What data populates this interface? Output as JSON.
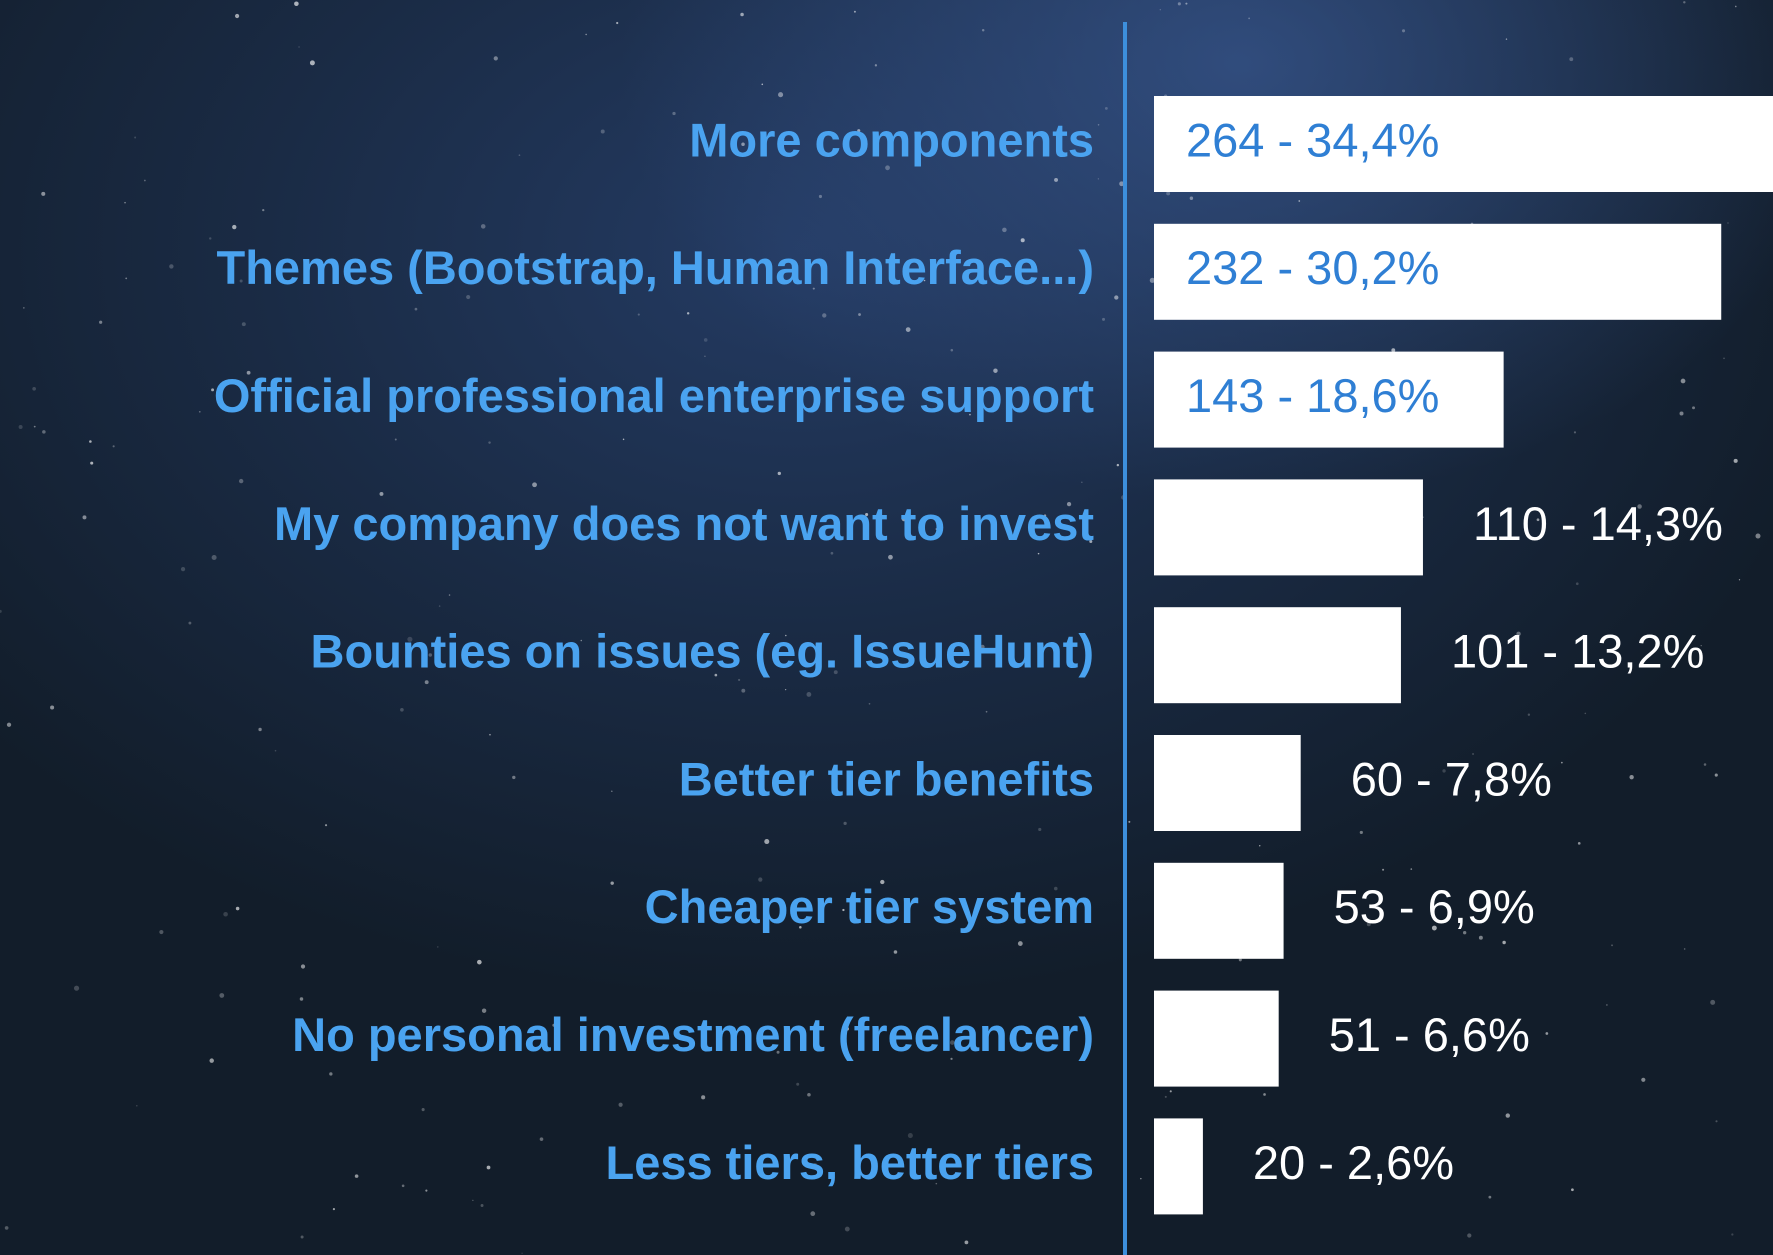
{
  "chart_data": {
    "type": "bar",
    "orientation": "horizontal",
    "categories": [
      "More components",
      "Themes (Bootstrap, Human Interface...)",
      "Official professional enterprise support",
      "My company does not want to invest",
      "Bounties on issues (eg. IssueHunt)",
      "Better tier benefits",
      "Cheaper tier system",
      "No personal investment (freelancer)",
      "Less tiers, better tiers"
    ],
    "values": [
      264,
      232,
      143,
      110,
      101,
      60,
      53,
      51,
      20
    ],
    "value_labels": [
      "264 - 34,4%",
      "232 - 30,2%",
      "143 - 18,6%",
      "110 - 14,3%",
      "101 - 13,2%",
      "60 - 7,8%",
      "53 - 6,9%",
      "51 - 6,6%",
      "20 - 2,6%"
    ],
    "color": "#ffffff"
  }
}
